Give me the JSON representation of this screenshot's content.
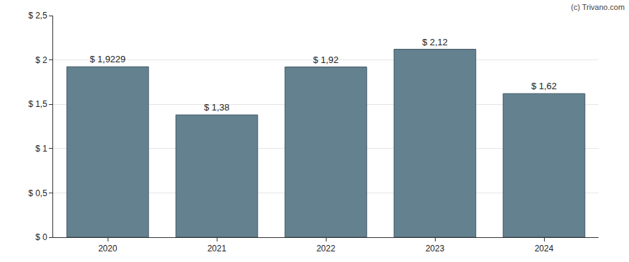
{
  "chart_data": {
    "type": "bar",
    "categories": [
      "2020",
      "2021",
      "2022",
      "2023",
      "2024"
    ],
    "values": [
      1.9229,
      1.38,
      1.92,
      2.12,
      1.62
    ],
    "value_labels": [
      "$ 1,9229",
      "$ 1,38",
      "$ 1,92",
      "$ 2,12",
      "$ 1,62"
    ],
    "data_labels": true,
    "color": "#64818f",
    "ylim": [
      0,
      2.5
    ],
    "yticks": [
      {
        "value": 0,
        "label": "$ 0"
      },
      {
        "value": 0.5,
        "label": "$ 0,5"
      },
      {
        "value": 1,
        "label": "$ 1"
      },
      {
        "value": 1.5,
        "label": "$ 1,5"
      },
      {
        "value": 2,
        "label": "$ 2"
      },
      {
        "value": 2.5,
        "label": "$ 2,5"
      }
    ],
    "grid": true,
    "annotations": [
      "(c) Trivano.com"
    ]
  }
}
